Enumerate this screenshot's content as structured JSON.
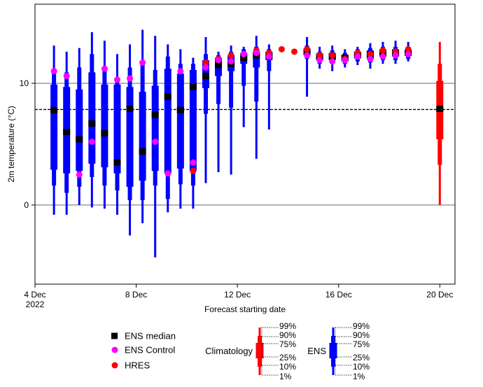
{
  "chart_data": {
    "type": "box-fan",
    "xlabel": "Forecast starting date",
    "ylabel": "2m temperature (°C)",
    "ylim": [
      -6.5,
      16.5
    ],
    "xlim": [
      4.0,
      20.6
    ],
    "x_ticks": [
      {
        "x": 4,
        "label": "4 Dec",
        "sublabel": "2022"
      },
      {
        "x": 8,
        "label": "8 Dec",
        "sublabel": ""
      },
      {
        "x": 12,
        "label": "12 Dec",
        "sublabel": ""
      },
      {
        "x": 16,
        "label": "16 Dec",
        "sublabel": ""
      },
      {
        "x": 20,
        "label": "20 Dec",
        "sublabel": ""
      }
    ],
    "y_ticks": [
      {
        "y": 0,
        "label": "0"
      },
      {
        "y": 10,
        "label": "10"
      }
    ],
    "reference_line_y": 7.85,
    "colors": {
      "ens": "#0000ff",
      "climatology": "#ff0000",
      "median": "#000000",
      "control": "#ff00ff",
      "hres": "#ff0000"
    },
    "ens": [
      {
        "x": 4.75,
        "p1": -0.8,
        "p10": 1.6,
        "p25": 2.9,
        "p50": 7.8,
        "p75": 9.9,
        "p90": 11.1,
        "p99": 13.1,
        "control": 11.0,
        "hres": null
      },
      {
        "x": 5.25,
        "p1": -0.8,
        "p10": 1.0,
        "p25": 2.6,
        "p50": 6.0,
        "p75": 9.7,
        "p90": 10.9,
        "p99": 12.6,
        "control": 10.6,
        "hres": null
      },
      {
        "x": 5.75,
        "p1": 0.0,
        "p10": 1.5,
        "p25": 2.8,
        "p50": 5.4,
        "p75": 9.5,
        "p90": 11.3,
        "p99": 12.9,
        "control": 2.5,
        "hres": null
      },
      {
        "x": 6.25,
        "p1": -0.2,
        "p10": 2.3,
        "p25": 3.4,
        "p50": 6.7,
        "p75": 10.9,
        "p90": 12.4,
        "p99": 14.2,
        "control": 5.2,
        "hres": null
      },
      {
        "x": 6.75,
        "p1": -0.3,
        "p10": 1.6,
        "p25": 3.1,
        "p50": 5.9,
        "p75": 9.9,
        "p90": 11.2,
        "p99": 13.5,
        "control": 11.2,
        "hres": null
      },
      {
        "x": 7.25,
        "p1": -0.8,
        "p10": 1.2,
        "p25": 2.6,
        "p50": 3.5,
        "p75": 9.9,
        "p90": 10.3,
        "p99": 12.4,
        "control": 10.3,
        "hres": null
      },
      {
        "x": 7.75,
        "p1": -2.5,
        "p10": 0.4,
        "p25": 1.5,
        "p50": 7.9,
        "p75": 9.7,
        "p90": 11.3,
        "p99": 13.2,
        "control": 10.4,
        "hres": null
      },
      {
        "x": 8.25,
        "p1": -1.5,
        "p10": 0.4,
        "p25": 2.0,
        "p50": 4.4,
        "p75": 9.3,
        "p90": 11.7,
        "p99": 14.4,
        "control": 11.7,
        "hres": null
      },
      {
        "x": 8.75,
        "p1": -4.3,
        "p10": 1.6,
        "p25": 2.8,
        "p50": 7.4,
        "p75": 9.8,
        "p90": 11.1,
        "p99": 13.9,
        "control": 5.2,
        "hres": null
      },
      {
        "x": 9.25,
        "p1": -0.6,
        "p10": 0.5,
        "p25": 2.6,
        "p50": 8.9,
        "p75": 11.2,
        "p90": 12.2,
        "p99": 13.2,
        "control": 2.6,
        "hres": null
      },
      {
        "x": 9.75,
        "p1": -0.3,
        "p10": 1.7,
        "p25": 3.0,
        "p50": 7.8,
        "p75": 10.8,
        "p90": 11.6,
        "p99": 12.8,
        "control": 11.0,
        "hres": null
      },
      {
        "x": 10.25,
        "p1": -0.3,
        "p10": 1.6,
        "p25": 2.8,
        "p50": 9.7,
        "p75": 11.1,
        "p90": 11.6,
        "p99": 12.1,
        "control": 3.5,
        "hres": 2.8
      },
      {
        "x": 10.75,
        "p1": 1.8,
        "p10": 7.5,
        "p25": 9.6,
        "p50": 10.6,
        "p75": 11.9,
        "p90": 12.4,
        "p99": 13.8,
        "control": 11.3,
        "hres": 11.7
      },
      {
        "x": 11.25,
        "p1": 2.7,
        "p10": 8.3,
        "p25": 10.6,
        "p50": 11.5,
        "p75": 12.1,
        "p90": 12.3,
        "p99": 12.6,
        "control": 11.9,
        "hres": 12.0
      },
      {
        "x": 11.75,
        "p1": 2.5,
        "p10": 8.0,
        "p25": 11.0,
        "p50": 11.6,
        "p75": 12.3,
        "p90": 12.6,
        "p99": 13.1,
        "control": 11.8,
        "hres": 12.3
      },
      {
        "x": 12.25,
        "p1": 6.4,
        "p10": 9.8,
        "p25": 11.6,
        "p50": 12.1,
        "p75": 12.5,
        "p90": 12.8,
        "p99": 13.0,
        "control": 12.4,
        "hres": 12.4
      },
      {
        "x": 12.75,
        "p1": 3.8,
        "p10": 8.5,
        "p25": 11.3,
        "p50": 12.3,
        "p75": 12.6,
        "p90": 13.0,
        "p99": 13.9,
        "control": 12.5,
        "hres": 12.7
      },
      {
        "x": 13.25,
        "p1": 6.2,
        "p10": 11.0,
        "p25": 11.9,
        "p50": 12.3,
        "p75": 12.6,
        "p90": 12.8,
        "p99": 13.2,
        "control": 12.2,
        "hres": 12.5
      },
      {
        "x": 13.75,
        "p1": null,
        "p10": null,
        "p25": null,
        "p50": null,
        "p75": null,
        "p90": null,
        "p99": null,
        "control": null,
        "hres": 12.8
      },
      {
        "x": 14.25,
        "p1": null,
        "p10": null,
        "p25": null,
        "p50": null,
        "p75": null,
        "p90": null,
        "p99": null,
        "control": null,
        "hres": 12.6
      },
      {
        "x": 14.75,
        "p1": 8.9,
        "p10": 12.0,
        "p25": 12.3,
        "p50": 12.6,
        "p75": 12.8,
        "p90": 13.1,
        "p99": 13.8,
        "control": 12.3,
        "hres": 12.8
      },
      {
        "x": 15.25,
        "p1": 11.2,
        "p10": 11.6,
        "p25": 11.9,
        "p50": 12.2,
        "p75": 12.4,
        "p90": 12.6,
        "p99": 13.0,
        "control": 11.9,
        "hres": 12.3
      },
      {
        "x": 15.75,
        "p1": 11.0,
        "p10": 11.6,
        "p25": 11.9,
        "p50": 12.2,
        "p75": 12.5,
        "p90": 12.7,
        "p99": 13.1,
        "control": 11.8,
        "hres": 12.3
      },
      {
        "x": 16.25,
        "p1": 11.3,
        "p10": 11.6,
        "p25": 11.8,
        "p50": 12.1,
        "p75": 12.3,
        "p90": 12.5,
        "p99": 12.8,
        "control": 11.9,
        "hres": 12.0
      },
      {
        "x": 16.75,
        "p1": 11.5,
        "p10": 11.8,
        "p25": 12.1,
        "p50": 12.3,
        "p75": 12.6,
        "p90": 12.8,
        "p99": 13.0,
        "control": 12.2,
        "hres": 12.5
      },
      {
        "x": 17.25,
        "p1": 11.2,
        "p10": 11.7,
        "p25": 12.0,
        "p50": 12.4,
        "p75": 12.7,
        "p90": 12.9,
        "p99": 13.3,
        "control": 12.0,
        "hres": 12.4
      },
      {
        "x": 17.75,
        "p1": 11.6,
        "p10": 11.9,
        "p25": 12.2,
        "p50": 12.5,
        "p75": 12.8,
        "p90": 13.0,
        "p99": 13.4,
        "control": 12.2,
        "hres": 12.7
      },
      {
        "x": 18.25,
        "p1": 11.6,
        "p10": 11.9,
        "p25": 12.2,
        "p50": 12.5,
        "p75": 12.8,
        "p90": 13.0,
        "p99": 13.5,
        "control": 12.3,
        "hres": 12.6
      },
      {
        "x": 18.75,
        "p1": 11.8,
        "p10": 12.0,
        "p25": 12.3,
        "p50": 12.5,
        "p75": 12.7,
        "p90": 13.0,
        "p99": 13.4,
        "control": 12.4,
        "hres": 12.8
      }
    ],
    "climatology": {
      "x": 20.0,
      "p1": 0.0,
      "p10": 3.3,
      "p25": 5.4,
      "p50": 7.9,
      "p75": 10.2,
      "p90": 11.6,
      "p99": 13.4
    },
    "legend": {
      "markers": [
        {
          "key": "median",
          "label": "ENS median"
        },
        {
          "key": "control",
          "label": "ENS Control"
        },
        {
          "key": "hres",
          "label": "HRES"
        }
      ],
      "climatology_label": "Climatology",
      "ens_label": "ENS",
      "percentile_labels": [
        "99%",
        "90%",
        "75%",
        "25%",
        "10%",
        "1%"
      ]
    }
  }
}
